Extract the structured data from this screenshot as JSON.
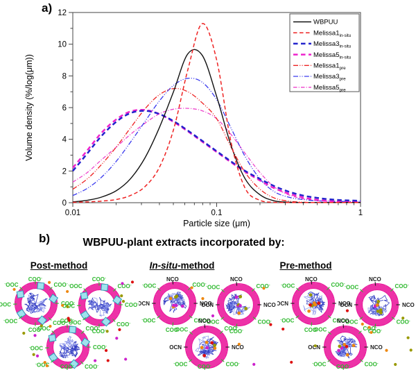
{
  "figure": {
    "panel_a_label": "a)",
    "panel_b_label": "b)"
  },
  "chart_data": {
    "type": "line",
    "title": "",
    "xlabel": "Particle size (μm)",
    "ylabel": "Volume density (%/log(μm))",
    "x_scale": "log",
    "xlim": [
      0.01,
      1
    ],
    "ylim": [
      0,
      12
    ],
    "x_ticks": [
      0.01,
      0.1,
      1
    ],
    "x_tick_labels": [
      "0.01",
      "0.1",
      "1"
    ],
    "y_ticks": [
      0,
      2,
      4,
      6,
      8,
      10,
      12
    ],
    "grid": false,
    "legend_position": "top-right",
    "x": [
      0.01,
      0.0126,
      0.0158,
      0.02,
      0.0251,
      0.0316,
      0.0398,
      0.0501,
      0.0631,
      0.0794,
      0.1,
      0.126,
      0.158,
      0.2,
      0.251,
      0.316,
      0.398,
      0.501,
      0.631,
      0.794,
      1.0
    ],
    "series": [
      {
        "name": "WBPUU",
        "sub": "",
        "color": "#111111",
        "dash": "solid",
        "width": 1.4,
        "values": [
          0.05,
          0.15,
          0.35,
          0.75,
          1.5,
          2.8,
          4.7,
          7.0,
          9.4,
          9.3,
          6.7,
          3.6,
          1.5,
          0.5,
          0.12,
          0.03,
          0,
          0,
          0,
          0,
          0
        ]
      },
      {
        "name": "Melissa1",
        "sub": "in-situ",
        "color": "#ee2222",
        "dash": "dash",
        "width": 1.5,
        "values": [
          0.02,
          0.05,
          0.1,
          0.2,
          0.45,
          1.0,
          2.2,
          4.6,
          8.4,
          11.3,
          9.0,
          3.8,
          0.9,
          0.15,
          0.02,
          0,
          0,
          0,
          0,
          0,
          0
        ]
      },
      {
        "name": "Melissa3",
        "sub": "in-situ",
        "color": "#2222cc",
        "dash": "dash-bold",
        "width": 2.5,
        "values": [
          2.0,
          3.1,
          4.2,
          5.1,
          5.65,
          5.8,
          5.6,
          5.15,
          4.55,
          3.9,
          3.25,
          2.6,
          2.0,
          1.5,
          1.05,
          0.7,
          0.45,
          0.3,
          0.2,
          0.15,
          0.12
        ]
      },
      {
        "name": "Melissa5",
        "sub": "in-situ",
        "color": "#ee22cc",
        "dash": "dash-bold",
        "width": 2.5,
        "values": [
          2.2,
          3.3,
          4.4,
          5.25,
          5.75,
          5.85,
          5.6,
          5.1,
          4.5,
          3.85,
          3.2,
          2.55,
          1.95,
          1.4,
          0.92,
          0.58,
          0.33,
          0.18,
          0.1,
          0.06,
          0.05
        ]
      },
      {
        "name": "Melissa1",
        "sub": "pre",
        "color": "#ee2222",
        "dash": "dashdotdot",
        "width": 1.3,
        "values": [
          0.85,
          1.5,
          2.4,
          3.5,
          4.7,
          5.9,
          6.8,
          7.2,
          7.0,
          6.3,
          5.3,
          3.5,
          1.9,
          0.85,
          0.3,
          0.1,
          0.03,
          0,
          0,
          0,
          0
        ]
      },
      {
        "name": "Melissa3",
        "sub": "pre",
        "color": "#3a3aee",
        "dash": "dashdotdot",
        "width": 1.3,
        "values": [
          0.45,
          0.9,
          1.6,
          2.6,
          3.8,
          5.1,
          6.4,
          7.4,
          7.85,
          7.6,
          6.5,
          4.7,
          2.9,
          1.5,
          0.7,
          0.35,
          0.2,
          0.12,
          0.1,
          0.08,
          0.08
        ]
      },
      {
        "name": "Melissa5",
        "sub": "pre",
        "color": "#ee44cc",
        "dash": "dashdot",
        "width": 1.3,
        "values": [
          1.3,
          1.9,
          2.7,
          3.5,
          4.3,
          5.0,
          5.6,
          5.9,
          5.95,
          5.8,
          5.3,
          4.3,
          3.1,
          1.9,
          1.0,
          0.5,
          0.25,
          0.12,
          0.08,
          0.05,
          0.05
        ]
      }
    ]
  },
  "panel_b": {
    "title": "WBPUU-plant extracts incorporated by:",
    "methods": [
      {
        "label_italic": "",
        "label_text": "Post-method",
        "cluster": {
          "inside_dots": 0,
          "outside_dots": 26,
          "nco": false,
          "squares": true
        }
      },
      {
        "label_italic": "In-situ",
        "label_text": "-method",
        "cluster": {
          "inside_dots": 7,
          "outside_dots": 7,
          "nco": true,
          "squares": false
        }
      },
      {
        "label_italic": "",
        "label_text": "Pre-method",
        "cluster": {
          "inside_dots": 7,
          "outside_dots": 12,
          "nco": true,
          "squares": false
        }
      }
    ],
    "particle_text": {
      "coo": "COO",
      "ooc": "OOC",
      "sign": "-",
      "nco": "NCO",
      "ocn": "OCN"
    },
    "label_ring_post": [
      {
        "a": 92,
        "k": "coo"
      },
      {
        "a": 45,
        "k": "coo"
      },
      {
        "a": 0,
        "k": "coo"
      },
      {
        "a": -48,
        "k": "coo"
      },
      {
        "a": -92,
        "k": "coo"
      },
      {
        "a": -138,
        "k": "ooc"
      },
      {
        "a": 182,
        "k": "ooc"
      },
      {
        "a": 135,
        "k": "ooc"
      }
    ],
    "label_ring_nco": [
      {
        "a": 95,
        "k": "nco"
      },
      {
        "a": 45,
        "k": "coo"
      },
      {
        "a": 0,
        "k": "nco"
      },
      {
        "a": -40,
        "k": "coo"
      },
      {
        "a": -95,
        "k": "coo"
      },
      {
        "a": -140,
        "k": "ooc"
      },
      {
        "a": 180,
        "k": "ocn"
      },
      {
        "a": 138,
        "k": "ooc"
      }
    ],
    "colors": {
      "ring_fill": "#ff9ad2",
      "ring_stroke": "#e8189c",
      "core": "#2a35c0",
      "core_light": "#7d88e8",
      "green": "#2db82d",
      "label_black": "#1c1c1c",
      "cyan": "#9fe2ee",
      "cyan_stroke": "#2aa0b8",
      "dot_colors": [
        "#dd1111",
        "#cc22cc",
        "#ee8811",
        "#999900"
      ]
    }
  }
}
